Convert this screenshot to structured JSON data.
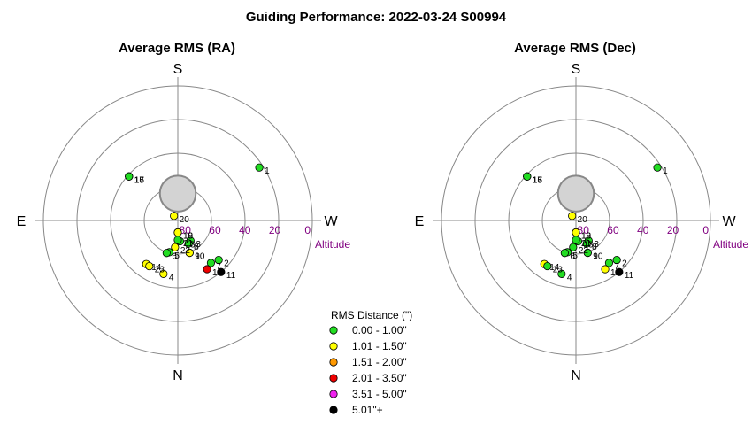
{
  "title": "Guiding Performance: 2022-03-24 S00994",
  "compass": {
    "south": "S",
    "north": "N",
    "east": "E",
    "west": "W"
  },
  "altitude_label": "Altitude",
  "altitude_ticks": [
    "80",
    "60",
    "40",
    "20",
    "0"
  ],
  "legend": {
    "title": "RMS Distance (\")",
    "items": [
      {
        "label": "0.00 - 1.00\"",
        "color": "#22dd22"
      },
      {
        "label": "1.01 - 1.50\"",
        "color": "#ffff00"
      },
      {
        "label": "1.51 - 2.00\"",
        "color": "#ff9900"
      },
      {
        "label": "2.01 - 3.50\"",
        "color": "#ee0000"
      },
      {
        "label": "3.51 - 5.00\"",
        "color": "#ee22ee"
      },
      {
        "label": "5.01\"+",
        "color": "#000000"
      }
    ]
  },
  "chart_data": [
    {
      "type": "scatter",
      "subtitle": "Average RMS (RA)",
      "projection": "polar-altaz",
      "radial_axis": "altitude",
      "altitude_range": [
        90,
        0
      ],
      "obstruction": {
        "shape": "circle",
        "center_alt": 72,
        "center_az": 0,
        "radius_deg": 12
      },
      "points": [
        {
          "label": "1",
          "alt": 25,
          "az": 303,
          "class": 0
        },
        {
          "label": "2",
          "alt": 52,
          "az": 226,
          "class": 0
        },
        {
          "label": "3",
          "alt": 74,
          "az": 212,
          "class": 0
        },
        {
          "label": "4",
          "alt": 53,
          "az": 165,
          "class": 1
        },
        {
          "label": "5",
          "alt": 68,
          "az": 165,
          "class": 0
        },
        {
          "label": "6",
          "alt": 67,
          "az": 161,
          "class": 0
        },
        {
          "label": "7",
          "alt": 54,
          "az": 218,
          "class": 0
        },
        {
          "label": "8",
          "alt": 73,
          "az": 205,
          "class": 0
        },
        {
          "label": "9",
          "alt": 67,
          "az": 200,
          "class": 0
        },
        {
          "label": "10",
          "alt": 67,
          "az": 200,
          "class": 1
        },
        {
          "label": "11",
          "alt": 45,
          "az": 220,
          "class": 5
        },
        {
          "label": "12",
          "alt": 52,
          "az": 211,
          "class": 3
        },
        {
          "label": "13",
          "alt": 76,
          "az": 186,
          "class": 0
        },
        {
          "label": "14",
          "alt": 54,
          "az": 144,
          "class": 1
        },
        {
          "label": "15",
          "alt": 46,
          "az": 48,
          "class": 0
        },
        {
          "label": "16",
          "alt": 46,
          "az": 48,
          "class": 0
        },
        {
          "label": "17",
          "alt": 46,
          "az": 48,
          "class": 0
        },
        {
          "label": "18",
          "alt": 82,
          "az": 180,
          "class": 0
        },
        {
          "label": "19",
          "alt": 82,
          "az": 180,
          "class": 1
        },
        {
          "label": "20",
          "alt": 86,
          "az": 40,
          "class": 1
        },
        {
          "label": "21",
          "alt": 77,
          "az": 180,
          "class": 0
        },
        {
          "label": "22",
          "alt": 72,
          "az": 174,
          "class": 1
        },
        {
          "label": "23",
          "alt": 54,
          "az": 148,
          "class": 1
        }
      ]
    },
    {
      "type": "scatter",
      "subtitle": "Average RMS (Dec)",
      "projection": "polar-altaz",
      "radial_axis": "altitude",
      "altitude_range": [
        90,
        0
      ],
      "obstruction": {
        "shape": "circle",
        "center_alt": 72,
        "center_az": 0,
        "radius_deg": 12
      },
      "points": [
        {
          "label": "1",
          "alt": 25,
          "az": 303,
          "class": 0
        },
        {
          "label": "2",
          "alt": 52,
          "az": 226,
          "class": 0
        },
        {
          "label": "3",
          "alt": 74,
          "az": 212,
          "class": 0
        },
        {
          "label": "4",
          "alt": 53,
          "az": 165,
          "class": 0
        },
        {
          "label": "5",
          "alt": 68,
          "az": 165,
          "class": 0
        },
        {
          "label": "6",
          "alt": 67,
          "az": 161,
          "class": 0
        },
        {
          "label": "7",
          "alt": 54,
          "az": 218,
          "class": 0
        },
        {
          "label": "8",
          "alt": 73,
          "az": 205,
          "class": 0
        },
        {
          "label": "9",
          "alt": 67,
          "az": 200,
          "class": 0
        },
        {
          "label": "10",
          "alt": 67,
          "az": 200,
          "class": 0
        },
        {
          "label": "11",
          "alt": 45,
          "az": 220,
          "class": 5
        },
        {
          "label": "12",
          "alt": 52,
          "az": 211,
          "class": 1
        },
        {
          "label": "13",
          "alt": 76,
          "az": 186,
          "class": 0
        },
        {
          "label": "14",
          "alt": 54,
          "az": 144,
          "class": 1
        },
        {
          "label": "15",
          "alt": 46,
          "az": 48,
          "class": 0
        },
        {
          "label": "16",
          "alt": 46,
          "az": 48,
          "class": 0
        },
        {
          "label": "17",
          "alt": 46,
          "az": 48,
          "class": 0
        },
        {
          "label": "18",
          "alt": 82,
          "az": 180,
          "class": 0
        },
        {
          "label": "19",
          "alt": 82,
          "az": 180,
          "class": 1
        },
        {
          "label": "20",
          "alt": 86,
          "az": 40,
          "class": 1
        },
        {
          "label": "21",
          "alt": 77,
          "az": 180,
          "class": 0
        },
        {
          "label": "22",
          "alt": 72,
          "az": 174,
          "class": 0
        },
        {
          "label": "23",
          "alt": 54,
          "az": 148,
          "class": 0
        }
      ]
    }
  ]
}
